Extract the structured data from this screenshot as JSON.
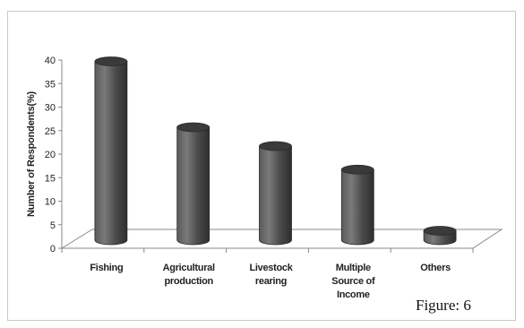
{
  "figure_label": "Figure: 6",
  "chart_data": {
    "type": "bar",
    "style": "3d-cylinder",
    "ylabel": "Number of Respondents(%)",
    "xlabel": "",
    "title": "",
    "ylim": [
      0,
      40
    ],
    "yticks": [
      "0",
      "5",
      "10",
      "15",
      "20",
      "25",
      "30",
      "35",
      "40"
    ],
    "categories": [
      [
        "Fishing"
      ],
      [
        "Agricultural",
        "production"
      ],
      [
        "Livestock",
        "rearing"
      ],
      [
        "Multiple",
        "Source of",
        "Income"
      ],
      [
        "Others"
      ]
    ],
    "values": [
      38,
      24,
      20,
      15,
      2
    ],
    "bar_color": "#555555",
    "grid": false,
    "legend": "none"
  }
}
